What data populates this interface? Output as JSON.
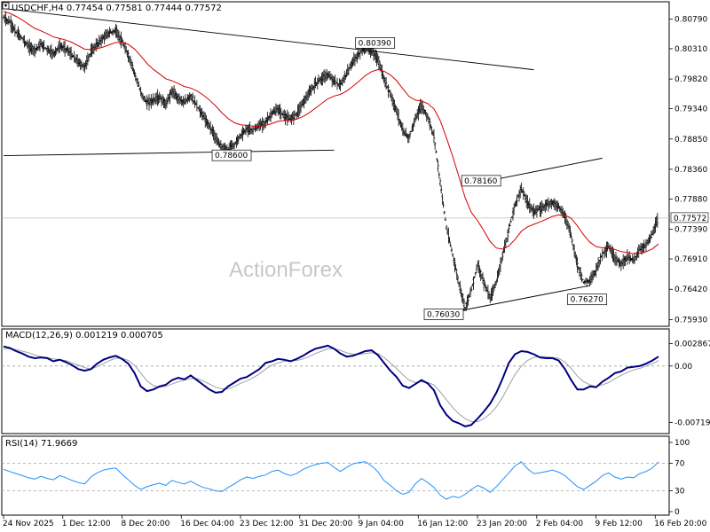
{
  "header": {
    "main": "USDCHF,H4  0.77454 0.77581 0.77444 0.77572",
    "macd": "MACD(12,26,9) 0.001219 0.000705",
    "rsi": "RSI(14) 71.9669"
  },
  "watermark": "ActionForex",
  "colors": {
    "candle": "#000000",
    "ma": "#d40000",
    "macd": "#000080",
    "signal": "#a0a0a0",
    "rsi": "#1e90ff",
    "trendline": "#000000"
  },
  "chart_data": [
    {
      "type": "line",
      "name": "price",
      "y_ticks": [
        "0.80790",
        "0.80310",
        "0.79820",
        "0.79340",
        "0.78850",
        "0.78360",
        "0.77880",
        "0.77390",
        "0.76910",
        "0.76420",
        "0.75930"
      ],
      "ylim": [
        0.7585,
        0.8104
      ],
      "x_ticks": [
        "24 Nov 2025",
        "1 Dec 12:00",
        "8 Dec 20:00",
        "16 Dec 04:00",
        "23 Dec 12:00",
        "31 Dec 20:00",
        "9 Jan 04:00",
        "16 Jan 12:00",
        "23 Jan 20:00",
        "2 Feb 04:00",
        "9 Feb 12:00",
        "16 Feb 20:00"
      ],
      "current_price": "0.77572",
      "current_value": 0.77572,
      "annotations": [
        {
          "text": "0.80390",
          "value": 0.8039
        },
        {
          "text": "0.78600",
          "value": 0.786
        },
        {
          "text": "0.78160",
          "value": 0.7816
        },
        {
          "text": "0.76030",
          "value": 0.7603
        },
        {
          "text": "0.76270",
          "value": 0.7627
        }
      ],
      "series_values": [
        0.8081,
        0.8074,
        0.8057,
        0.8048,
        0.8034,
        0.8029,
        0.8038,
        0.803,
        0.8023,
        0.8035,
        0.8031,
        0.802,
        0.8009,
        0.8001,
        0.8026,
        0.8038,
        0.8049,
        0.8057,
        0.806,
        0.8042,
        0.802,
        0.7992,
        0.796,
        0.7943,
        0.7948,
        0.7952,
        0.7941,
        0.7962,
        0.7951,
        0.7944,
        0.7955,
        0.7938,
        0.7922,
        0.7906,
        0.7887,
        0.7871,
        0.7868,
        0.7876,
        0.7891,
        0.7901,
        0.7899,
        0.7907,
        0.7912,
        0.7926,
        0.7933,
        0.7922,
        0.7917,
        0.7926,
        0.7944,
        0.7959,
        0.7974,
        0.7983,
        0.7989,
        0.7978,
        0.7971,
        0.7991,
        0.801,
        0.8023,
        0.8034,
        0.8028,
        0.8014,
        0.7981,
        0.7958,
        0.7931,
        0.7898,
        0.7887,
        0.7917,
        0.7939,
        0.792,
        0.7889,
        0.7815,
        0.7742,
        0.7698,
        0.7651,
        0.7612,
        0.7641,
        0.7682,
        0.7653,
        0.7627,
        0.7654,
        0.7697,
        0.7738,
        0.7778,
        0.7805,
        0.7782,
        0.7768,
        0.7771,
        0.7779,
        0.7783,
        0.7775,
        0.7761,
        0.7728,
        0.7681,
        0.7653,
        0.7656,
        0.7674,
        0.7699,
        0.7711,
        0.7692,
        0.7683,
        0.7694,
        0.7689,
        0.7706,
        0.7714,
        0.7731,
        0.7757
      ],
      "trendlines": [
        {
          "from": [
            0,
            0.8096
          ],
          "to": [
            85,
            0.7997
          ]
        },
        {
          "from": [
            0,
            0.7858
          ],
          "to": [
            53,
            0.7867
          ]
        },
        {
          "from": [
            76,
            0.7814
          ],
          "to": [
            96,
            0.7854
          ]
        },
        {
          "from": [
            70,
            0.7601
          ],
          "to": [
            94,
            0.7648
          ]
        }
      ],
      "horizontal_line": 0.77572
    },
    {
      "type": "line",
      "name": "MACD(12,26,9)",
      "y_ticks": [
        "0.002867",
        "0.00",
        "-0.007196"
      ],
      "ylim": [
        -0.0085,
        0.0045
      ],
      "macd": [
        0.0025,
        0.0023,
        0.0019,
        0.0016,
        0.0012,
        0.001,
        0.0011,
        0.001,
        0.0006,
        0.0008,
        0.0005,
        0.0001,
        -0.0004,
        -0.0006,
        -0.0004,
        0.0003,
        0.0008,
        0.0011,
        0.0013,
        0.0009,
        0.0003,
        -0.0009,
        -0.0026,
        -0.0032,
        -0.003,
        -0.0026,
        -0.0024,
        -0.0018,
        -0.0015,
        -0.0017,
        -0.0012,
        -0.0018,
        -0.0024,
        -0.003,
        -0.0034,
        -0.0033,
        -0.0026,
        -0.0021,
        -0.0016,
        -0.0014,
        -0.0009,
        -0.0004,
        0.0004,
        0.0006,
        0.0009,
        0.0008,
        0.0006,
        0.0009,
        0.0013,
        0.0018,
        0.0022,
        0.0024,
        0.0026,
        0.0022,
        0.0016,
        0.0012,
        0.0013,
        0.0016,
        0.0019,
        0.002,
        0.0014,
        0.0004,
        -0.0006,
        -0.0014,
        -0.0025,
        -0.0028,
        -0.0023,
        -0.0018,
        -0.0022,
        -0.0031,
        -0.005,
        -0.0062,
        -0.007,
        -0.0073,
        -0.0077,
        -0.0075,
        -0.0067,
        -0.0058,
        -0.0048,
        -0.0034,
        -0.0016,
        0.0004,
        0.0015,
        0.0019,
        0.0018,
        0.0015,
        0.0011,
        0.001,
        0.001,
        0.0007,
        -0.0004,
        -0.0018,
        -0.003,
        -0.003,
        -0.0026,
        -0.0027,
        -0.002,
        -0.0015,
        -0.0009,
        -0.0007,
        -0.0002,
        -0.0001,
        0.0,
        0.0003,
        0.0007,
        0.0012
      ],
      "signal": [
        0.0022,
        0.0022,
        0.0021,
        0.0019,
        0.0017,
        0.0014,
        0.0012,
        0.0011,
        0.0009,
        0.0008,
        0.0007,
        0.0004,
        0.0001,
        -0.0002,
        -0.0004,
        -0.0001,
        0.0003,
        0.0007,
        0.001,
        0.001,
        0.0007,
        0.0001,
        -0.0009,
        -0.0019,
        -0.0025,
        -0.0027,
        -0.0026,
        -0.0023,
        -0.002,
        -0.0018,
        -0.0016,
        -0.0016,
        -0.0019,
        -0.0023,
        -0.0027,
        -0.0029,
        -0.0029,
        -0.0026,
        -0.0022,
        -0.0019,
        -0.0015,
        -0.001,
        -0.0004,
        0.0001,
        0.0004,
        0.0006,
        0.0007,
        0.0007,
        0.0009,
        0.0012,
        0.0016,
        0.0019,
        0.0022,
        0.0022,
        0.002,
        0.0017,
        0.0015,
        0.0015,
        0.0016,
        0.0017,
        0.0016,
        0.0011,
        0.0004,
        -0.0003,
        -0.0011,
        -0.0018,
        -0.0021,
        -0.002,
        -0.0021,
        -0.0024,
        -0.0033,
        -0.0043,
        -0.0053,
        -0.0061,
        -0.0067,
        -0.0071,
        -0.0071,
        -0.0067,
        -0.0061,
        -0.0052,
        -0.004,
        -0.0025,
        -0.0011,
        0.0,
        0.0007,
        0.0011,
        0.0012,
        0.0012,
        0.0011,
        0.001,
        0.0005,
        -0.0003,
        -0.0013,
        -0.002,
        -0.0024,
        -0.0026,
        -0.0024,
        -0.0021,
        -0.0016,
        -0.0012,
        -0.0008,
        -0.0005,
        -0.0003,
        0.0,
        0.0003,
        0.0007
      ]
    },
    {
      "type": "line",
      "name": "RSI(14)",
      "y_ticks": [
        "100",
        "70",
        "30",
        "0"
      ],
      "ylim": [
        0,
        100
      ],
      "levels": [
        70,
        30
      ],
      "values": [
        61,
        58,
        55,
        52,
        49,
        47,
        51,
        48,
        46,
        52,
        49,
        45,
        42,
        40,
        50,
        56,
        60,
        62,
        63,
        54,
        46,
        38,
        32,
        36,
        39,
        41,
        38,
        45,
        42,
        40,
        44,
        39,
        35,
        33,
        30,
        29,
        35,
        40,
        46,
        50,
        48,
        51,
        53,
        58,
        60,
        55,
        52,
        55,
        61,
        65,
        68,
        70,
        71,
        64,
        58,
        64,
        69,
        71,
        72,
        66,
        58,
        45,
        38,
        30,
        25,
        28,
        40,
        48,
        42,
        35,
        24,
        18,
        22,
        20,
        25,
        32,
        38,
        34,
        28,
        36,
        46,
        56,
        66,
        72,
        62,
        55,
        56,
        58,
        60,
        57,
        52,
        44,
        36,
        32,
        38,
        44,
        52,
        56,
        50,
        47,
        50,
        49,
        55,
        58,
        63,
        72
      ]
    }
  ]
}
